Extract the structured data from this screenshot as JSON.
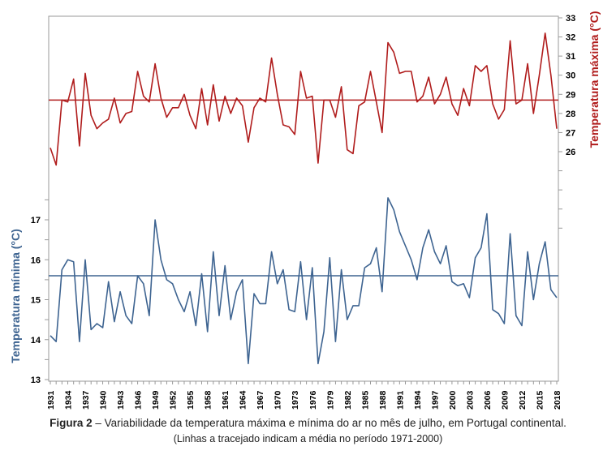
{
  "caption": {
    "figure_label": "Figura 2",
    "text": " – Variabilidade da temperatura máxima e mínima do ar no mês de julho, em Portugal continental.",
    "note": "(Linhas a tracejado indicam a média no período 1971-2000)"
  },
  "colors": {
    "max_series": "#b01c1c",
    "min_series": "#3e6491",
    "axis": "#888888",
    "text": "#000000"
  },
  "chart_data": {
    "type": "line",
    "x_tick_labels": [
      "1931",
      "1934",
      "1937",
      "1940",
      "1943",
      "1946",
      "1949",
      "1952",
      "1955",
      "1958",
      "1961",
      "1964",
      "1967",
      "1970",
      "1973",
      "1976",
      "1979",
      "1982",
      "1985",
      "1988",
      "1991",
      "1994",
      "1997",
      "2000",
      "2003",
      "2006",
      "2009",
      "2012",
      "2015",
      "2018"
    ],
    "x_range": [
      1931,
      2018
    ],
    "y_right": {
      "label": "Temperatura máxima (°C)",
      "ticks": [
        "26",
        "27",
        "28",
        "29",
        "30",
        "31",
        "32",
        "33"
      ],
      "range": [
        26,
        33
      ]
    },
    "y_left": {
      "label": "Temperatura mínima (°C)",
      "ticks": [
        "13",
        "14",
        "15",
        "16",
        "17"
      ],
      "range": [
        13,
        17
      ]
    },
    "series": [
      {
        "axis": "right",
        "mean_1971_2000": 28.7,
        "years_start": 1931,
        "values": [
          26.2,
          25.3,
          28.7,
          28.6,
          29.8,
          26.3,
          30.1,
          27.9,
          27.2,
          27.5,
          27.7,
          28.8,
          27.5,
          28.0,
          28.1,
          30.2,
          28.9,
          28.6,
          30.6,
          28.8,
          27.8,
          28.3,
          28.3,
          29.0,
          27.9,
          27.2,
          29.3,
          27.4,
          29.5,
          27.6,
          28.9,
          28.0,
          28.8,
          28.4,
          26.5,
          28.3,
          28.8,
          28.6,
          30.9,
          29.0,
          27.4,
          27.3,
          26.9,
          30.2,
          28.8,
          28.9,
          25.4,
          28.7,
          28.7,
          27.8,
          29.4,
          26.1,
          25.9,
          28.4,
          28.6,
          30.2,
          28.6,
          27.0,
          31.7,
          31.2,
          30.1,
          30.2,
          30.2,
          28.6,
          28.9,
          29.9,
          28.5,
          29.0,
          29.9,
          28.5,
          27.9,
          29.3,
          28.4,
          30.5,
          30.2,
          30.5,
          28.5,
          27.7,
          28.2,
          31.8,
          28.5,
          28.7,
          30.6,
          28.0,
          30.0,
          32.2,
          30.0,
          27.2
        ]
      },
      {
        "axis": "left",
        "mean_1971_2000": 15.6,
        "years_start": 1931,
        "values": [
          14.1,
          13.95,
          15.75,
          16.0,
          15.95,
          13.95,
          16.0,
          14.25,
          14.4,
          14.3,
          15.45,
          14.45,
          15.2,
          14.6,
          14.4,
          15.6,
          15.4,
          14.6,
          17.0,
          16.0,
          15.5,
          15.4,
          15.0,
          14.7,
          15.2,
          14.35,
          15.65,
          14.2,
          16.2,
          14.6,
          15.85,
          14.5,
          15.2,
          15.5,
          13.4,
          15.15,
          14.9,
          14.9,
          16.2,
          15.4,
          15.75,
          14.75,
          14.7,
          15.95,
          14.5,
          15.8,
          13.4,
          14.2,
          16.05,
          13.95,
          15.75,
          14.5,
          14.85,
          14.85,
          15.8,
          15.9,
          16.3,
          15.2,
          17.55,
          17.25,
          16.7,
          16.35,
          16.0,
          15.5,
          16.3,
          16.75,
          16.2,
          15.9,
          16.35,
          15.45,
          15.35,
          15.4,
          15.05,
          16.05,
          16.3,
          17.15,
          14.75,
          14.65,
          14.4,
          16.65,
          14.6,
          14.35,
          16.2,
          15.0,
          15.9,
          16.45,
          15.25,
          15.05
        ]
      }
    ]
  }
}
